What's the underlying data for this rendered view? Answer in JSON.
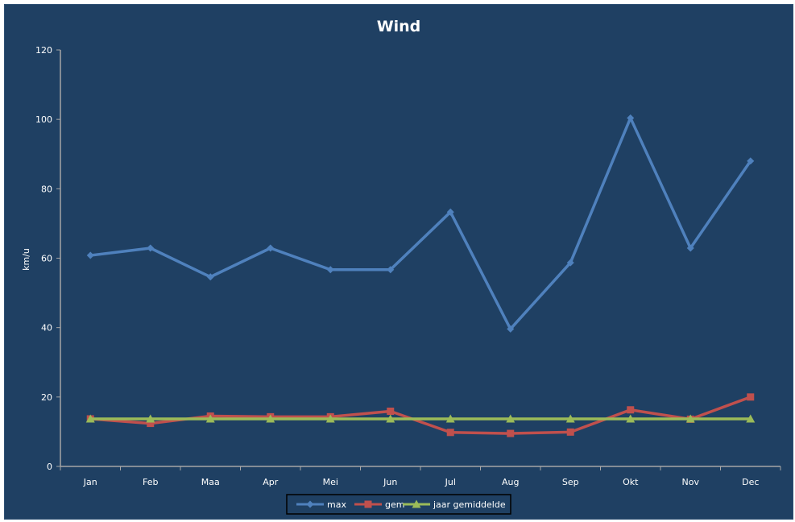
{
  "chart_data": {
    "type": "line",
    "title": "Wind",
    "xlabel": "",
    "ylabel": "km/u",
    "ylim": [
      0,
      120
    ],
    "yticks": [
      0,
      20,
      40,
      60,
      80,
      100,
      120
    ],
    "grid": false,
    "legend_position": "bottom",
    "categories": [
      "Jan",
      "Feb",
      "Maa",
      "Apr",
      "Mei",
      "Jun",
      "Jul",
      "Aug",
      "Sep",
      "Okt",
      "Nov",
      "Dec"
    ],
    "series": [
      {
        "name": "max",
        "color": "#4f81bd",
        "marker": "diamond",
        "values": [
          60.8,
          62.9,
          54.6,
          62.9,
          56.7,
          56.7,
          73.3,
          39.6,
          58.7,
          100.4,
          62.9,
          88.0
        ]
      },
      {
        "name": "gem",
        "color": "#c0504d",
        "marker": "square",
        "values": [
          13.7,
          12.4,
          14.5,
          14.3,
          14.3,
          15.9,
          9.8,
          9.5,
          9.9,
          16.3,
          13.6,
          20.0
        ]
      },
      {
        "name": "jaar gemiddelde",
        "color": "#9bbb59",
        "marker": "triangle",
        "values": [
          13.7,
          13.7,
          13.7,
          13.7,
          13.7,
          13.7,
          13.7,
          13.7,
          13.7,
          13.7,
          13.7,
          13.7
        ]
      }
    ]
  },
  "colors": {
    "background": "#1f4063",
    "axis": "#a6a6a6",
    "text": "#ffffff",
    "legend_border": "#000000"
  }
}
